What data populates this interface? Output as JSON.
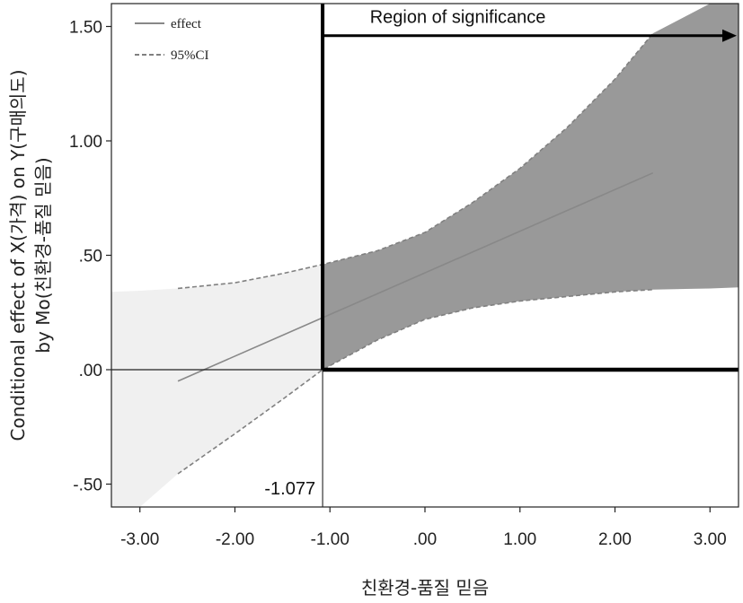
{
  "chart_data": {
    "type": "line",
    "title": "",
    "xlabel": "친환경-품질 믿음",
    "ylabel_lines": [
      "Conditional effect of X(가격) on Y(구매의도)",
      "by Mo(친환경-품질 믿음)"
    ],
    "xlim": [
      -3.3,
      3.3
    ],
    "ylim": [
      -0.6,
      1.6
    ],
    "x_ticks": [
      -3,
      -2,
      -1,
      0,
      1,
      2,
      3
    ],
    "x_tick_labels": [
      "-3.00",
      "-2.00",
      "-1.00",
      ".00",
      "1.00",
      "2.00",
      "3.00"
    ],
    "y_ticks": [
      -0.5,
      0,
      0.5,
      1,
      1.5
    ],
    "y_tick_labels": [
      "-.50",
      ".00",
      ".50",
      "1.00",
      "1.50"
    ],
    "grid": false,
    "legend_position": "top-left",
    "legend": [
      {
        "label": "effect",
        "style": "solid"
      },
      {
        "label": "95%CI",
        "style": "dashed"
      }
    ],
    "series": [
      {
        "name": "effect",
        "style": "solid",
        "x": [
          -2.6,
          2.4
        ],
        "y": [
          -0.05,
          0.86
        ]
      },
      {
        "name": "95%CI",
        "style": "dashed",
        "bound": "upper",
        "x": [
          -2.6,
          -2.0,
          -1.5,
          -1.077,
          -0.5,
          0.0,
          0.5,
          1.0,
          1.5,
          2.0,
          2.4
        ],
        "y": [
          0.355,
          0.38,
          0.42,
          0.46,
          0.52,
          0.6,
          0.73,
          0.88,
          1.06,
          1.27,
          1.47
        ]
      },
      {
        "name": "95%CI",
        "style": "dashed",
        "bound": "lower",
        "x": [
          -2.6,
          -2.0,
          -1.5,
          -1.077,
          -0.5,
          0.0,
          0.5,
          1.0,
          1.5,
          2.0,
          2.4
        ],
        "y": [
          -0.455,
          -0.28,
          -0.13,
          0.0,
          0.13,
          0.22,
          0.27,
          0.3,
          0.32,
          0.34,
          0.35
        ]
      }
    ],
    "band_light": {
      "x": [
        -3.3,
        -3.0,
        -2.6,
        -2.0,
        -1.5,
        -1.077
      ],
      "upper": [
        0.34,
        0.345,
        0.355,
        0.38,
        0.42,
        0.46
      ],
      "lower": [
        -0.6,
        -0.6,
        -0.455,
        -0.28,
        -0.13,
        0.0
      ]
    },
    "band_dark": {
      "x": [
        -1.077,
        -0.5,
        0.0,
        0.5,
        1.0,
        1.5,
        2.0,
        2.4,
        3.0,
        3.3
      ],
      "upper": [
        0.46,
        0.52,
        0.6,
        0.73,
        0.88,
        1.06,
        1.27,
        1.47,
        1.6,
        1.6
      ],
      "lower": [
        0.0,
        0.13,
        0.22,
        0.27,
        0.3,
        0.32,
        0.34,
        0.35,
        0.355,
        0.36
      ]
    },
    "cutoff": {
      "x": -1.077,
      "label": "-1.077"
    },
    "zero_line_y": 0,
    "annotations": [
      {
        "text": "Region of significance",
        "arrow_x": [
          -1.077,
          3.3
        ],
        "arrow_y": 1.46
      }
    ],
    "colors": {
      "band_light": "#f0f0f0",
      "band_dark": "#999999",
      "effect_line": "#888888",
      "ci_line": "#808080",
      "axis": "#222222"
    }
  }
}
